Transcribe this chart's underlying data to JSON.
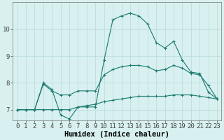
{
  "xlabel": "Humidex (Indice chaleur)",
  "x_values": [
    0,
    1,
    2,
    3,
    4,
    5,
    6,
    7,
    8,
    9,
    10,
    11,
    12,
    13,
    14,
    15,
    16,
    17,
    18,
    19,
    20,
    21,
    22,
    23
  ],
  "line_max": [
    7.0,
    7.0,
    7.0,
    8.0,
    7.75,
    6.8,
    6.65,
    7.1,
    7.1,
    7.1,
    8.85,
    10.35,
    10.5,
    10.6,
    10.5,
    10.2,
    9.5,
    9.3,
    9.55,
    8.85,
    8.4,
    8.35,
    7.65,
    7.4
  ],
  "line_avg": [
    7.0,
    7.0,
    7.0,
    7.95,
    7.7,
    7.55,
    7.55,
    7.7,
    7.7,
    7.7,
    8.3,
    8.5,
    8.6,
    8.65,
    8.65,
    8.6,
    8.45,
    8.5,
    8.65,
    8.55,
    8.35,
    8.3,
    7.9,
    7.4
  ],
  "line_min": [
    7.0,
    7.0,
    7.0,
    7.0,
    7.0,
    7.0,
    7.0,
    7.1,
    7.15,
    7.2,
    7.3,
    7.35,
    7.4,
    7.45,
    7.5,
    7.5,
    7.5,
    7.5,
    7.55,
    7.55,
    7.55,
    7.5,
    7.45,
    7.4
  ],
  "line_color": "#1a7a6e",
  "bg_color": "#d8f0f0",
  "grid_color": "#b8dada",
  "ylim": [
    6.6,
    11.0
  ],
  "yticks": [
    7,
    8,
    9,
    10
  ],
  "xticks": [
    0,
    1,
    2,
    3,
    4,
    5,
    6,
    7,
    8,
    9,
    10,
    11,
    12,
    13,
    14,
    15,
    16,
    17,
    18,
    19,
    20,
    21,
    22,
    23
  ],
  "tick_fontsize": 6.5,
  "xlabel_fontsize": 7.5,
  "marker": "+"
}
